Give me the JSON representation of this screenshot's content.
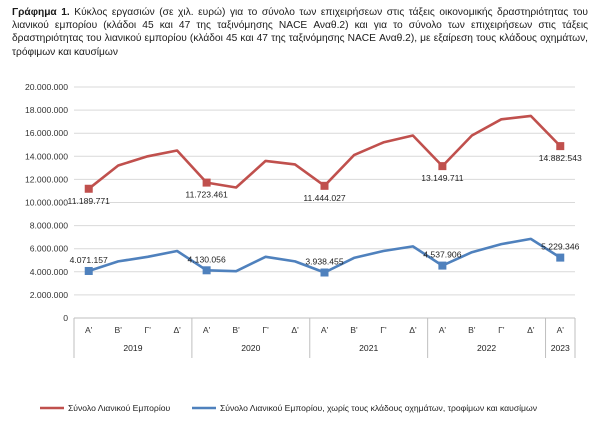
{
  "caption": {
    "label": "Γράφημα 1.",
    "text": " Κύκλος εργασιών (σε χιλ. ευρώ) για το σύνολο των επιχειρήσεων στις τάξεις οικονομικής δραστηριότητας του λιανικού εμπορίου (κλάδοι 45 και 47 της ταξινόμησης NACE Αναθ.2) και για το σύνολο των επιχειρήσεων στις τάξεις δραστηριότητας του λιανικού εμπορίου (κλάδοι 45 και 47 της ταξινόμησης NACE Αναθ.2), με εξαίρεση τους κλάδους οχημάτων, τρόφιμων και καυσίμων"
  },
  "chart_data": {
    "type": "line",
    "categories": [
      "Α'",
      "Β'",
      "Γ'",
      "Δ'",
      "Α'",
      "Β'",
      "Γ'",
      "Δ'",
      "Α'",
      "Β'",
      "Γ'",
      "Δ'",
      "Α'",
      "Β'",
      "Γ'",
      "Δ'",
      "Α'"
    ],
    "year_groups": [
      {
        "label": "2019",
        "start": 0,
        "end": 3
      },
      {
        "label": "2020",
        "start": 4,
        "end": 7
      },
      {
        "label": "2021",
        "start": 8,
        "end": 11
      },
      {
        "label": "2022",
        "start": 12,
        "end": 15
      },
      {
        "label": "2023",
        "start": 16,
        "end": 16
      }
    ],
    "ylim": [
      0,
      20000000
    ],
    "yticks": [
      0,
      2000000,
      4000000,
      6000000,
      8000000,
      10000000,
      12000000,
      14000000,
      16000000,
      18000000,
      20000000
    ],
    "ytick_labels": [
      "0",
      "2.000.000",
      "4.000.000",
      "6.000.000",
      "8.000.000",
      "10.000.000",
      "12.000.000",
      "14.000.000",
      "16.000.000",
      "18.000.000",
      "20.000.000"
    ],
    "grid": true,
    "legend_position": "bottom",
    "series": [
      {
        "name": "Σύνολο Λιανικού Εμπορίου",
        "color": "#c0504d",
        "values": [
          11189771,
          13200000,
          14000000,
          14500000,
          11723461,
          11300000,
          13600000,
          13300000,
          11444027,
          14100000,
          15200000,
          15800000,
          13149711,
          15800000,
          17200000,
          17500000,
          14882543
        ],
        "labels": [
          {
            "index": 0,
            "text": "11.189.771"
          },
          {
            "index": 4,
            "text": "11.723.461"
          },
          {
            "index": 8,
            "text": "11.444.027"
          },
          {
            "index": 12,
            "text": "13.149.711"
          },
          {
            "index": 16,
            "text": "14.882.543"
          }
        ]
      },
      {
        "name": "Σύνολο Λιανικού Εμπορίου, χωρίς τους κλάδους οχημάτων, τροφίμων και καυσίμων",
        "color": "#4f81bd",
        "values": [
          4071157,
          4900000,
          5300000,
          5800000,
          4130056,
          4050000,
          5300000,
          4900000,
          3938455,
          5200000,
          5800000,
          6200000,
          4537906,
          5700000,
          6400000,
          6850000,
          5229346
        ],
        "labels": [
          {
            "index": 0,
            "text": "4.071.157"
          },
          {
            "index": 4,
            "text": "4.130.056"
          },
          {
            "index": 8,
            "text": "3.938.455"
          },
          {
            "index": 12,
            "text": "4.537.906"
          },
          {
            "index": 16,
            "text": "5.229.346"
          }
        ]
      }
    ]
  }
}
